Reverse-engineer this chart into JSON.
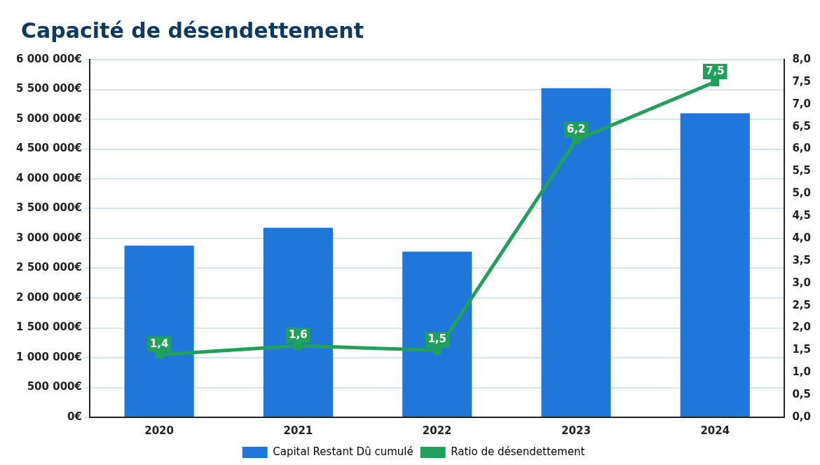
{
  "chart_data": {
    "type": "bar",
    "title": "Capacité de désendettement",
    "categories": [
      "2020",
      "2021",
      "2022",
      "2023",
      "2024"
    ],
    "series": [
      {
        "name": "Capital Restant Dû cumulé",
        "color": "#1f77d9",
        "values": [
          2880000,
          3180000,
          2780000,
          5520000,
          5100000
        ]
      },
      {
        "name": "Ratio de désendettement",
        "type": "line",
        "axis": "y2",
        "color": "#20a05a",
        "values": [
          1.4,
          1.6,
          1.5,
          6.2,
          7.5
        ],
        "value_labels": [
          "1,4",
          "1,6",
          "1,5",
          "6,2",
          "7,5"
        ],
        "marker": "square"
      }
    ],
    "ylim": [
      0,
      6000000
    ],
    "yticks": [
      {
        "value": 0,
        "label": "0€"
      },
      {
        "value": 500000,
        "label": "500 000€"
      },
      {
        "value": 1000000,
        "label": "1 000 000€"
      },
      {
        "value": 1500000,
        "label": "1 500 000€"
      },
      {
        "value": 2000000,
        "label": "2 000 000€"
      },
      {
        "value": 2500000,
        "label": "2 500 000€"
      },
      {
        "value": 3000000,
        "label": "3 000 000€"
      },
      {
        "value": 3500000,
        "label": "3 500 000€"
      },
      {
        "value": 4000000,
        "label": "4 000 000€"
      },
      {
        "value": 4500000,
        "label": "4 500 000€"
      },
      {
        "value": 5000000,
        "label": "5 000 000€"
      },
      {
        "value": 5500000,
        "label": "5 500 000€"
      },
      {
        "value": 6000000,
        "label": "6 000 000€"
      }
    ],
    "y2lim": [
      0,
      8
    ],
    "y2ticks": [
      {
        "value": 0,
        "label": "0,0"
      },
      {
        "value": 0.5,
        "label": "0,5"
      },
      {
        "value": 1,
        "label": "1,0"
      },
      {
        "value": 1.5,
        "label": "1,5"
      },
      {
        "value": 2,
        "label": "2,0"
      },
      {
        "value": 2.5,
        "label": "2,5"
      },
      {
        "value": 3,
        "label": "3,0"
      },
      {
        "value": 3.5,
        "label": "3,5"
      },
      {
        "value": 4,
        "label": "4,0"
      },
      {
        "value": 4.5,
        "label": "4,5"
      },
      {
        "value": 5,
        "label": "5,0"
      },
      {
        "value": 5.5,
        "label": "5,5"
      },
      {
        "value": 6,
        "label": "6,0"
      },
      {
        "value": 6.5,
        "label": "6,5"
      },
      {
        "value": 7,
        "label": "7,0"
      },
      {
        "value": 7.5,
        "label": "7,5"
      },
      {
        "value": 8,
        "label": "8,0"
      }
    ],
    "grid": "y",
    "legend": "bottom"
  }
}
